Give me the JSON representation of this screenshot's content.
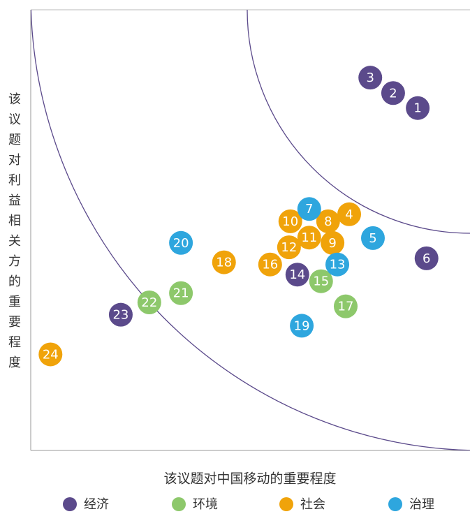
{
  "chart_data": {
    "type": "scatter",
    "x_label": "该议题对中国移动的重要程度",
    "y_label": "该议题对利益相关方的重要程度",
    "xlim": [
      0,
      100
    ],
    "ylim": [
      0,
      100
    ],
    "series": [
      {
        "name": "经济",
        "color": "#5b4a8b",
        "labels": [
          "1",
          "2",
          "3",
          "6",
          "14",
          "23"
        ],
        "x": [
          88.1,
          82.5,
          77.3,
          90.1,
          60.7,
          20.5
        ],
        "values": [
          77.7,
          81.1,
          84.6,
          43.6,
          39.9,
          30.8
        ]
      },
      {
        "name": "环境",
        "color": "#8dc86b",
        "labels": [
          "15",
          "17",
          "21",
          "22"
        ],
        "x": [
          66.1,
          71.7,
          34.2,
          27.0
        ],
        "values": [
          38.4,
          32.7,
          35.7,
          33.6
        ]
      },
      {
        "name": "社会",
        "color": "#f0a30a",
        "labels": [
          "4",
          "8",
          "9",
          "10",
          "11",
          "12",
          "16",
          "18",
          "24"
        ],
        "x": [
          72.5,
          67.7,
          68.7,
          59.1,
          63.4,
          58.8,
          54.5,
          44.0,
          4.5
        ],
        "values": [
          53.6,
          52.0,
          47.1,
          52.0,
          48.3,
          46.1,
          42.2,
          42.7,
          21.8
        ]
      },
      {
        "name": "治理",
        "color": "#2ea6de",
        "labels": [
          "5",
          "7",
          "13",
          "19",
          "20"
        ],
        "x": [
          77.9,
          63.4,
          69.8,
          61.7,
          34.2
        ],
        "values": [
          48.2,
          54.8,
          42.2,
          28.3,
          47.1
        ]
      }
    ]
  }
}
